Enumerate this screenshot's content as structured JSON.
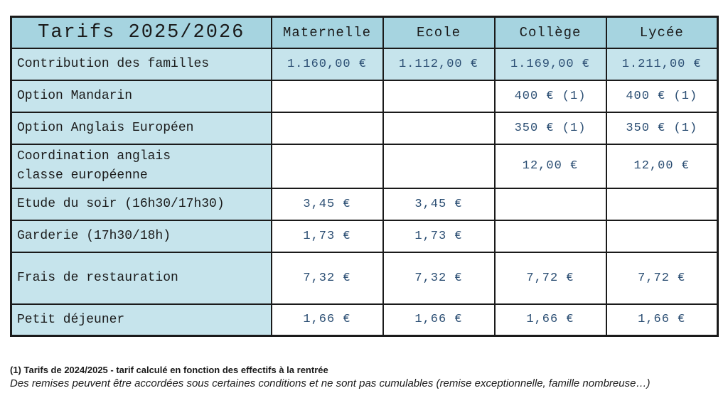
{
  "table": {
    "title": "Tarifs 2025/2026",
    "columns": [
      "Maternelle",
      "Ecole",
      "Collège",
      "Lycée"
    ],
    "rows": [
      {
        "label": "Contribution des familles",
        "highlighted": true,
        "values": [
          "1.160,00 €",
          "1.112,00 €",
          "1.169,00 €",
          "1.211,00 €"
        ]
      },
      {
        "label": "Option Mandarin",
        "highlighted": false,
        "values": [
          "",
          "",
          "400 € (1)",
          "400 € (1)"
        ]
      },
      {
        "label": "Option Anglais Européen",
        "highlighted": false,
        "values": [
          "",
          "",
          "350 € (1)",
          "350 € (1)"
        ]
      },
      {
        "label": "Coordination anglais\nclasse européenne",
        "highlighted": false,
        "values": [
          "",
          "",
          "12,00 €",
          "12,00 €"
        ]
      },
      {
        "label": "Etude du soir (16h30/17h30)",
        "highlighted": false,
        "values": [
          "3,45 €",
          "3,45 €",
          "",
          ""
        ]
      },
      {
        "label": "Garderie (17h30/18h)",
        "highlighted": false,
        "values": [
          "1,73 €",
          "1,73 €",
          "",
          ""
        ]
      },
      {
        "label": "Frais de restauration",
        "highlighted": false,
        "values": [
          "7,32 €",
          "7,32 €",
          "7,72 €",
          "7,72 €"
        ]
      },
      {
        "label": "Petit déjeuner",
        "highlighted": false,
        "values": [
          "1,66 €",
          "1,66 €",
          "1,66 €",
          "1,66 €"
        ]
      }
    ]
  },
  "footnotes": {
    "line1": "(1) Tarifs de 2024/2025 - tarif calculé en fonction des effectifs à la rentrée",
    "line2": "Des remises peuvent être accordées sous certaines conditions et ne sont pas cumulables (remise exceptionnelle, famille nombreuse…)"
  },
  "colors": {
    "header_blue": "#a6d4e0",
    "row_blue": "#c6e4ec",
    "value_text": "#2b4e73",
    "border": "#1a1a1a"
  }
}
